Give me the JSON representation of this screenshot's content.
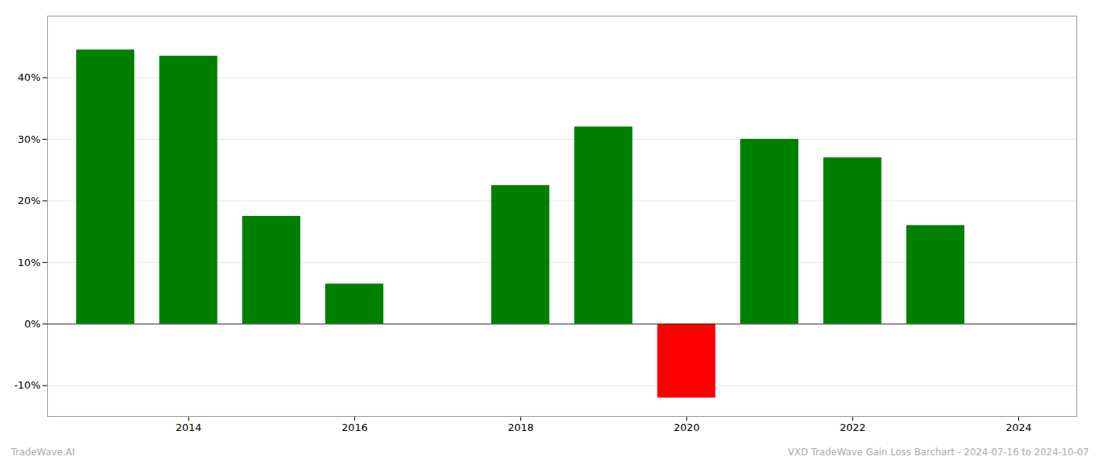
{
  "chart_data": {
    "type": "bar",
    "x": [
      2013,
      2014,
      2015,
      2016,
      2018,
      2019,
      2020,
      2021,
      2022,
      2023
    ],
    "values": [
      44.5,
      43.5,
      17.5,
      6.5,
      22.5,
      32.0,
      -12.0,
      30.0,
      27.0,
      16.0
    ],
    "colors": [
      "#008000",
      "#008000",
      "#008000",
      "#008000",
      "#008000",
      "#008000",
      "#ff0000",
      "#008000",
      "#008000",
      "#008000"
    ],
    "xlim": [
      2012.3,
      2024.7
    ],
    "xticks": [
      2014,
      2016,
      2018,
      2020,
      2022,
      2024
    ],
    "ylim": [
      -15,
      50
    ],
    "yticks": [
      {
        "value": -10,
        "label": "-10%"
      },
      {
        "value": 0,
        "label": "0%"
      },
      {
        "value": 10,
        "label": "10%"
      },
      {
        "value": 20,
        "label": "20%"
      },
      {
        "value": 30,
        "label": "30%"
      },
      {
        "value": 40,
        "label": "40%"
      }
    ],
    "grid": true,
    "annotations": [
      "TradeWave.AI",
      "VXD TradeWave Gain Loss Barchart - 2024-07-16 to 2024-10-07"
    ]
  }
}
